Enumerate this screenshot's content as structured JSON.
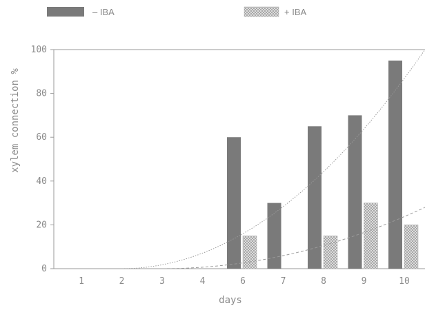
{
  "chart_data": {
    "type": "bar",
    "title": "",
    "xlabel": "days",
    "ylabel": "xylem connection %",
    "categories": [
      "1",
      "2",
      "3",
      "4",
      "6",
      "7",
      "8",
      "9",
      "10"
    ],
    "series": [
      {
        "name": "– IBA",
        "values": [
          0,
          0,
          0,
          0,
          60,
          30,
          65,
          70,
          95
        ],
        "color": "#7a7a7a",
        "pattern": "solid"
      },
      {
        "name": "+ IBA",
        "values": [
          0,
          0,
          0,
          0,
          15,
          0,
          15,
          30,
          20
        ],
        "color": "#cfcfcf",
        "pattern": "crosshatch"
      }
    ],
    "yticks": [
      0,
      20,
      40,
      60,
      80,
      100
    ],
    "ylim": [
      0,
      100
    ],
    "grid": false,
    "legend_position": "top",
    "trend_lines": [
      {
        "series": "– IBA",
        "style": "dotted"
      },
      {
        "series": "+ IBA",
        "style": "dashed"
      }
    ]
  }
}
